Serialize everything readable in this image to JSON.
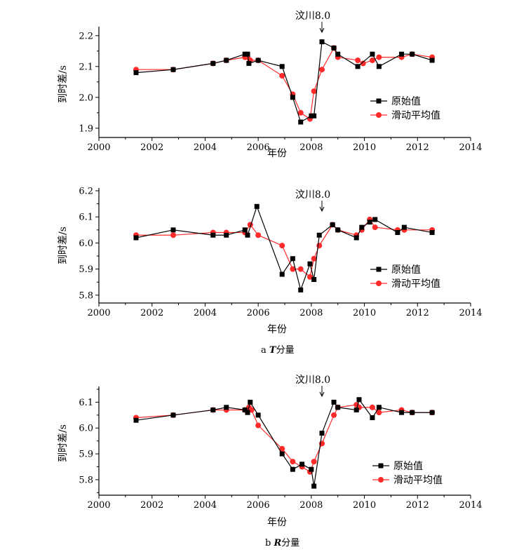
{
  "chart_data": [
    {
      "type": "line",
      "xlabel": "年份",
      "ylabel": "到时差/s",
      "xlim": [
        2000,
        2014
      ],
      "ylim": [
        1.87,
        2.22
      ],
      "xticks": [
        "2000",
        "2002",
        "2004",
        "2006",
        "2008",
        "2010",
        "2012",
        "2014"
      ],
      "yticks": [
        "1.9",
        "2.0",
        "2.1",
        "2.2"
      ],
      "annotation": "汶川8.0",
      "annotation_x": 2008.4,
      "legend_position": "center-right",
      "series": [
        {
          "name": "原始值",
          "color": "#000000",
          "marker": "square",
          "x": [
            2001.4,
            2002.8,
            2004.3,
            2004.8,
            2005.5,
            2005.6,
            2005.65,
            2006.0,
            2006.9,
            2007.3,
            2007.6,
            2008.0,
            2008.1,
            2008.4,
            2008.85,
            2009.0,
            2009.75,
            2010.3,
            2010.55,
            2011.4,
            2011.8,
            2012.55
          ],
          "y": [
            2.08,
            2.09,
            2.11,
            2.12,
            2.14,
            2.14,
            2.11,
            2.12,
            2.1,
            2.0,
            1.92,
            1.94,
            1.94,
            2.18,
            2.16,
            2.14,
            2.1,
            2.14,
            2.1,
            2.14,
            2.14,
            2.12
          ]
        },
        {
          "name": "滑动平均值",
          "color": "#ff2a2a",
          "marker": "circle",
          "x": [
            2001.4,
            2002.8,
            2004.3,
            2004.8,
            2005.5,
            2005.6,
            2005.7,
            2006.0,
            2006.9,
            2007.3,
            2007.6,
            2007.95,
            2008.1,
            2008.4,
            2008.85,
            2009.0,
            2009.75,
            2009.95,
            2010.3,
            2010.55,
            2011.4,
            2011.8,
            2012.55
          ],
          "y": [
            2.09,
            2.09,
            2.11,
            2.12,
            2.13,
            2.13,
            2.12,
            2.12,
            2.07,
            2.01,
            1.95,
            1.93,
            2.02,
            2.09,
            2.16,
            2.13,
            2.12,
            2.11,
            2.12,
            2.13,
            2.13,
            2.14,
            2.13
          ]
        }
      ]
    },
    {
      "type": "line",
      "xlabel": "年份",
      "ylabel": "到时差/s",
      "xlim": [
        2000,
        2014
      ],
      "ylim": [
        5.77,
        6.2
      ],
      "xticks": [
        "2000",
        "2002",
        "2004",
        "2006",
        "2008",
        "2010",
        "2012",
        "2014"
      ],
      "yticks": [
        "5.8",
        "5.9",
        "6.0",
        "6.1",
        "6.2"
      ],
      "annotation": "汶川8.0",
      "annotation_x": 2008.4,
      "legend_position": "center-right",
      "caption_prefix": "a",
      "caption_var": "T",
      "caption_suffix": "分量",
      "series": [
        {
          "name": "原始值",
          "color": "#000000",
          "marker": "square",
          "x": [
            2001.4,
            2002.8,
            2004.3,
            2004.8,
            2005.5,
            2005.6,
            2005.95,
            2006.9,
            2007.3,
            2007.6,
            2007.95,
            2008.1,
            2008.3,
            2008.8,
            2009.0,
            2009.7,
            2009.9,
            2010.2,
            2010.4,
            2011.25,
            2011.5,
            2012.55
          ],
          "y": [
            6.02,
            6.05,
            6.03,
            6.03,
            6.05,
            6.03,
            6.14,
            5.88,
            5.94,
            5.82,
            5.92,
            5.86,
            6.03,
            6.07,
            6.05,
            6.02,
            6.06,
            6.08,
            6.09,
            6.04,
            6.06,
            6.04
          ]
        },
        {
          "name": "滑动平均值",
          "color": "#ff2a2a",
          "marker": "circle",
          "x": [
            2001.4,
            2002.8,
            2004.3,
            2004.8,
            2005.5,
            2005.7,
            2006.0,
            2006.9,
            2007.3,
            2007.6,
            2007.95,
            2008.1,
            2008.3,
            2008.8,
            2009.0,
            2009.7,
            2009.9,
            2010.2,
            2010.4,
            2011.25,
            2011.5,
            2012.55
          ],
          "y": [
            6.03,
            6.03,
            6.04,
            6.04,
            6.04,
            6.07,
            6.03,
            5.99,
            5.9,
            5.9,
            5.87,
            5.94,
            5.99,
            6.07,
            6.05,
            6.03,
            6.05,
            6.09,
            6.06,
            6.05,
            6.05,
            6.05
          ]
        }
      ]
    },
    {
      "type": "line",
      "xlabel": "年份",
      "ylabel": "到时差/s",
      "xlim": [
        2000,
        2014
      ],
      "ylim": [
        5.74,
        6.15
      ],
      "xticks": [
        "2000",
        "2002",
        "2004",
        "2006",
        "2008",
        "2010",
        "2012",
        "2014"
      ],
      "yticks": [
        "5.8",
        "5.9",
        "6.0",
        "6.1"
      ],
      "annotation": "汶川8.0",
      "annotation_x": 2008.4,
      "legend_position": "center-right",
      "caption_prefix": "b",
      "caption_var": "R",
      "caption_suffix": "分量",
      "series": [
        {
          "name": "原始值",
          "color": "#000000",
          "marker": "square",
          "x": [
            2001.4,
            2002.8,
            2004.3,
            2004.8,
            2005.5,
            2005.6,
            2005.7,
            2006.0,
            2006.9,
            2007.3,
            2007.65,
            2008.0,
            2008.1,
            2008.4,
            2008.85,
            2009.0,
            2009.7,
            2009.8,
            2010.3,
            2010.55,
            2011.4,
            2011.8,
            2012.55
          ],
          "y": [
            6.03,
            6.05,
            6.07,
            6.08,
            6.07,
            6.06,
            6.1,
            6.05,
            5.9,
            5.84,
            5.86,
            5.84,
            5.775,
            5.98,
            6.1,
            6.08,
            6.07,
            6.11,
            6.04,
            6.08,
            6.06,
            6.06,
            6.06
          ]
        },
        {
          "name": "滑动平均值",
          "color": "#ff2a2a",
          "marker": "circle",
          "x": [
            2001.4,
            2002.8,
            2004.3,
            2004.8,
            2005.5,
            2005.65,
            2005.75,
            2006.0,
            2006.9,
            2007.3,
            2007.65,
            2007.95,
            2008.1,
            2008.4,
            2008.85,
            2009.0,
            2009.7,
            2009.8,
            2010.3,
            2010.55,
            2011.4,
            2011.8,
            2012.55
          ],
          "y": [
            6.04,
            6.05,
            6.07,
            6.07,
            6.07,
            6.08,
            6.07,
            6.01,
            5.92,
            5.87,
            5.85,
            5.83,
            5.87,
            5.94,
            6.05,
            6.08,
            6.09,
            6.08,
            6.08,
            6.06,
            6.07,
            6.06,
            6.06
          ]
        }
      ]
    }
  ]
}
